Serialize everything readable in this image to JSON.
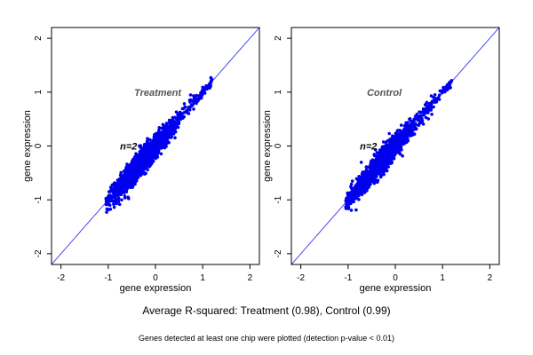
{
  "summary_text": "Average R-squared: Treatment (0.98), Control (0.99)",
  "note_text": "Genes detected at least one chip were plotted (detection p-value < 0.01)",
  "colors": {
    "points": "#0000ee",
    "diagonal": "#3333ee",
    "annotation": "#555555"
  },
  "chart_data": [
    {
      "type": "scatter",
      "title": "",
      "xlabel": "gene expression",
      "ylabel": "gene expression",
      "xlim": [
        -2.2,
        2.2
      ],
      "ylim": [
        -2.2,
        2.2
      ],
      "xticks": [
        -2,
        -1,
        0,
        1,
        2
      ],
      "yticks": [
        -2,
        -1,
        0,
        1,
        2
      ],
      "grid": false,
      "reference_line": "y = x",
      "annotations": [
        {
          "text": "Treatment",
          "x": -0.45,
          "y": 1.0
        },
        {
          "text": "n=2",
          "x": -0.75,
          "y": 0.0
        }
      ],
      "series": [
        {
          "distribution": {
            "x_range": [
              -1.05,
              1.2
            ],
            "x_center": -0.3,
            "slope": 1.0,
            "spread": 0.11,
            "count": 1600
          }
        }
      ]
    },
    {
      "type": "scatter",
      "title": "",
      "xlabel": "gene expression",
      "ylabel": "gene expression",
      "xlim": [
        -2.2,
        2.2
      ],
      "ylim": [
        -2.2,
        2.2
      ],
      "xticks": [
        -2,
        -1,
        0,
        1,
        2
      ],
      "yticks": [
        -2,
        -1,
        0,
        1,
        2
      ],
      "grid": false,
      "reference_line": "y = x",
      "annotations": [
        {
          "text": "Control",
          "x": -0.6,
          "y": 1.0
        },
        {
          "text": "n=2",
          "x": -0.75,
          "y": 0.0
        }
      ],
      "series": [
        {
          "distribution": {
            "x_range": [
              -1.05,
              1.2
            ],
            "x_center": -0.3,
            "slope": 1.0,
            "spread": 0.1,
            "count": 1600
          }
        }
      ]
    }
  ]
}
